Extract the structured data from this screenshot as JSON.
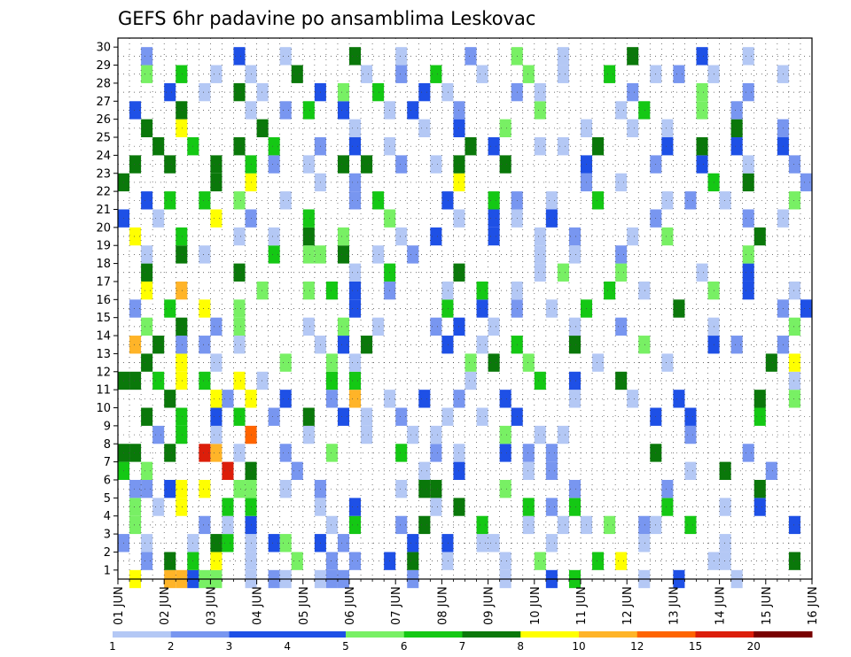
{
  "chart_data": {
    "type": "heatmap",
    "title": "GEFS 6hr padavine po ansamblima Leskovac",
    "xlabel": "",
    "ylabel": "",
    "x_tick_labels": [
      "01 JUN",
      "02 JUN",
      "03 JUN",
      "04 JUN",
      "05 JUN",
      "06 JUN",
      "07 JUN",
      "08 JUN",
      "09 JUN",
      "10 JUN",
      "11 JUN",
      "12 JUN",
      "13 JUN",
      "14 JUN",
      "15 JUN",
      "16 JUN"
    ],
    "y_tick_labels": [
      1,
      2,
      3,
      4,
      5,
      6,
      7,
      8,
      9,
      10,
      11,
      12,
      13,
      14,
      15,
      16,
      17,
      18,
      19,
      20,
      21,
      22,
      23,
      24,
      25,
      26,
      27,
      28,
      29,
      30
    ],
    "ylim": [
      0,
      30
    ],
    "grid": true,
    "legend": {
      "placement": "bottom",
      "labels": [
        "1",
        "2",
        "3",
        "4",
        "5",
        "6",
        "7",
        "8",
        "10",
        "12",
        "15",
        "20"
      ],
      "colors": [
        "#b4c8f5",
        "#7896f0",
        "#1e50e6",
        "#1e50e6",
        "#78f064",
        "#14c814",
        "#0a780a",
        "#ffff00",
        "#ffb428",
        "#ff6400",
        "#dc1e0a",
        "#780000"
      ]
    },
    "cell_colors": {
      "0": "#b4c8f5",
      "1": "#7896f0",
      "2": "#1e50e6",
      "3": "#78f064",
      "4": "#14c814",
      "5": "#0a780a",
      "6": "#ffff00",
      "7": "#ffb428",
      "8": "#ff6400",
      "9": "#dc1e0a",
      "10": "#780000"
    },
    "note_rows": "Each row string: one character per 6h step (col 0 = 01 JUN 00Z). '.' = below threshold, digits/letters = colour class index (0-9, 'a' = 10).",
    "members": [
      ".6..77233..0.10..011.....1.......0...2.4.....0..2....0..........0.......4.4..4....5.....1.0....",
      "..1.5.4.6..0...3..1.1..2.5..0....0..3....4.6.......00.....5.....4.4..2.3..36....3..15....3.2...",
      "1.0...0.54.0.23..2.1.....2..2..00....0.......0......0.......1..2.....22..1.0......2...1..4.3..1",
      ".3.....1.0.2......0.4...1.5....4...0..0.0.3..10..4........2.....5..2.5....1.2.......2..4.1..44.",
      ".3.0.6...4.4.....0..2......0.5.....4.1.4.......4....0..2.........5..5..5..2.11.....2....6...5..",
      ".11.26.6..33..0..1......0.55.....3.....1.......1.......5.......1.2.....6..2.1.......6.55.0.1.0",
      "4.3......9.5...1..........0..2.....0.1...........0..5...1.......1.....6...1....7..5..2......4.3",
      "55..5..97.0...1...3.....4..1.0...2.1.1........5.......1.....4....1..3......3...1.0..5..3.....0",
      "...1.4..0..8....0....0...0.0.....3..0.0..........1...........0..1..55....2.0...0....0..0....3.",
      "..5..4..2.4..1..5..2.0..1...0..0..2...........2..2.....4.....0.....0.....0...5....3..1.......1",
      "....5...61.6..2...1.7..0..2..1...2.....0....0...2......5..3...0.......1..1..5.0..1..1........6",
      "55.4.6.4..6.0.....4.4.........0.....4..2...5..............0......0...0...0.........5.........0",
      "..5..6..0.....3...3.0.........3.5..3.....0.....0........5.6.5.3..3...1.......1....4..0..0......",
      ".7.5.1.1..0......0.2.5......2..0..4....5.....3.....2.1...1..5..2...0......2...2.....0..1.....1",
      "..3..5..1.3.....0..3..0....1.2..0......0...1.......0......3.....2...0.....1..1..5...0..........",
      ".1..4..6..3.........2.......4..2..1..0..4.......5........1.2.2...1...0.....1...1....5....0.4.3..",
      "..6..7......3...3.4.2..1....0..4..0.......4..0.....3..2...0...1..4.......0.2....0...6...6.......",
      "..5.......5.........0..4.....5......0.3....3......0...2.....0...0.....7..1.5....0.......1.0....4",
      "..0..5.0.....4..33.5..0..1..........0..0...1..........3.....0.....4....1..0....4....5....0....1",
      ".6...4....0..0..5..3....0..2....2...0..1....0..3.......5........0.......4..3..1.0..3.....2.....",
      "2..0....6..1....4......3.....0..2.0..2........1.......1..0..........0.0...2.......4.3.0....4...6",
      "..2.4..4..3...0.....1.4.....2...4.1..0...4.....0.1..0.....3..0......5....0...8..0...6..5....4..",
      "5.......5..6.....0..1........6..........1..0.......4..5....1..4..2....3..0..0..1.....4..2....2",
      ".5..5...5..4.1..0..5.5..1..0.5...5......2.....1...2...0...1..4..1.1.....2....1....1.0.....0..1",
      "...5..4...5..4...1..2..0......5.2...0.0..5.....2..5..2...2..0.....0........0...4.3....7...0..0",
      "..5..6......5.......0.....0..2...3......0...0..0.....5...1.....4...2..0...3..0...4..1....5..2..",
      ".2...5.....0..1.4..2...0.2...1......3......0.4....3..1......5.0.........1..2.....3....0..1...5.",
      "....2..0..5.0....2.3..4...2.0.....1.0.......1.....3...1.....0..5.......3...4..2...5...0.........",
      "..3..4..0..0...5.....0..1..4...0...3..0...4...0.1..0.....0..3...0.4......3.1.....2...1......2..",
      "..1.......2...0.....5...0.....1...3...0.....5.....2...0.......0...4...1..2.......3....0......1.5"
    ]
  }
}
